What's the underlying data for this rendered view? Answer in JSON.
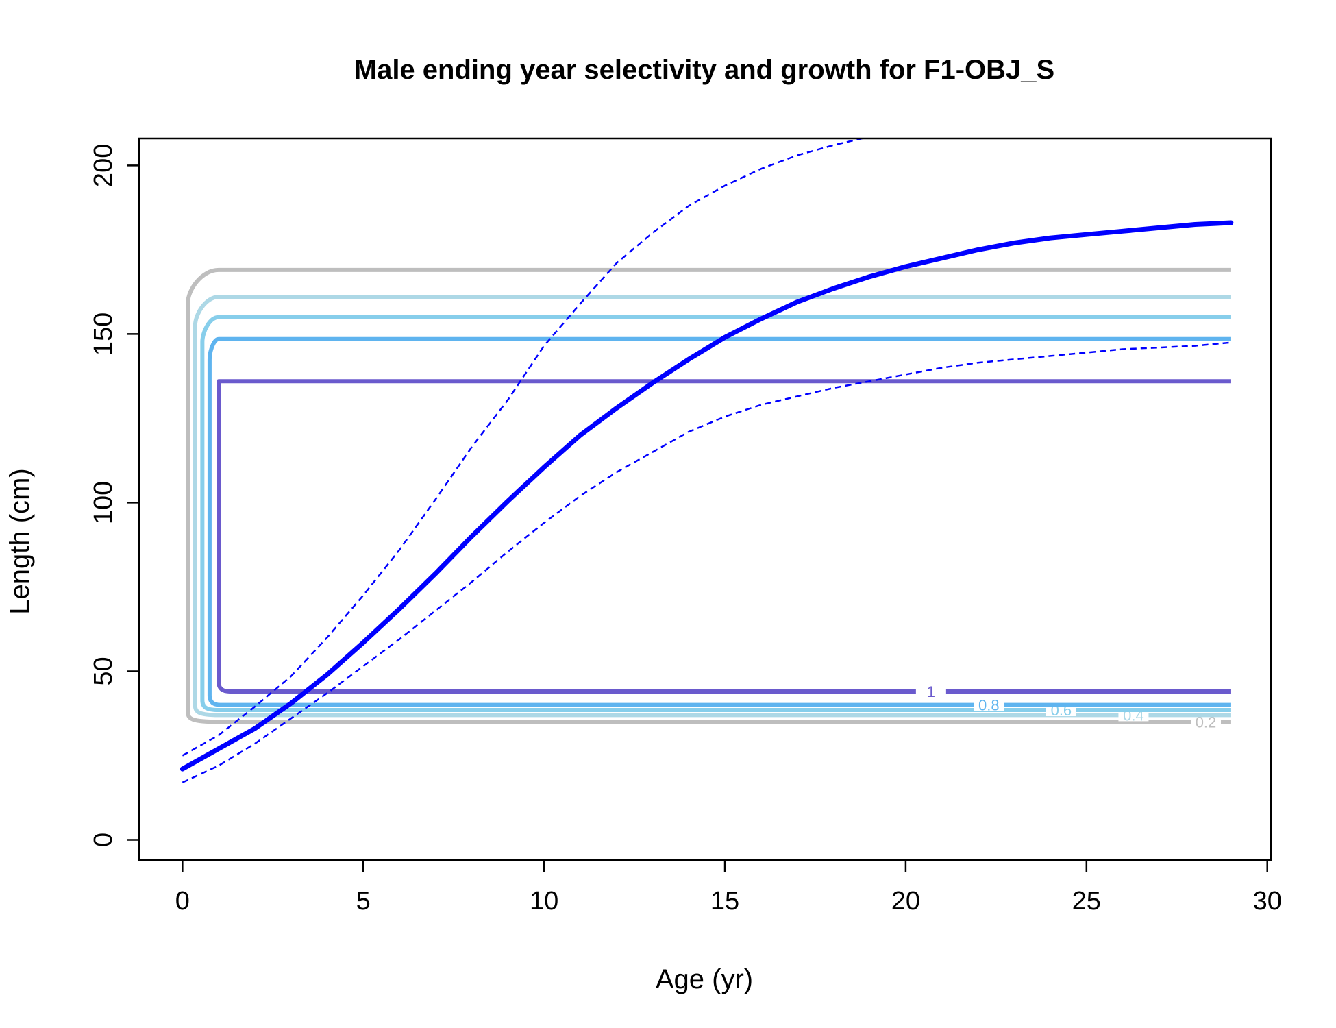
{
  "chart_data": {
    "type": "line",
    "title": "Male ending year selectivity and growth for F1-OBJ_S",
    "xlabel": "Age (yr)",
    "ylabel": "Length (cm)",
    "xlim": [
      -1.2,
      30.1
    ],
    "ylim": [
      -6,
      208
    ],
    "xticks": [
      0,
      5,
      10,
      15,
      20,
      25,
      30
    ],
    "yticks": [
      0,
      50,
      100,
      150,
      200
    ],
    "grid": false,
    "legend": "none",
    "growth": {
      "name": "",
      "color": "#0000ff",
      "x": [
        0,
        1,
        2,
        3,
        4,
        5,
        6,
        7,
        8,
        9,
        10,
        11,
        12,
        13,
        14,
        15,
        16,
        17,
        18,
        19,
        20,
        21,
        22,
        23,
        24,
        25,
        26,
        27,
        28,
        29
      ],
      "mean": [
        21,
        27,
        33,
        40.5,
        49,
        58.5,
        68.5,
        79,
        90,
        100.5,
        110.5,
        120,
        128,
        135.5,
        142.5,
        149,
        154.5,
        159.5,
        163.5,
        167,
        170,
        172.5,
        175,
        177,
        178.5,
        179.5,
        180.5,
        181.5,
        182.5,
        183
      ],
      "upper": [
        25,
        31,
        39.5,
        48.5,
        60,
        72.5,
        86,
        101,
        116.5,
        130.5,
        146.5,
        159,
        171,
        180,
        188,
        194,
        199,
        203,
        206,
        208.5,
        211,
        212.5,
        214,
        215,
        216,
        217,
        217.5,
        218,
        218.5,
        219
      ],
      "lower": [
        17,
        22,
        28.5,
        36,
        43.5,
        51.5,
        59.5,
        68,
        76.5,
        85.5,
        94,
        102,
        109,
        115,
        121,
        125.5,
        129,
        131.5,
        134,
        136,
        138,
        140,
        141.5,
        142.5,
        143.5,
        144.5,
        145.5,
        146,
        146.5,
        147.5
      ]
    },
    "contours": [
      {
        "level": "0.2",
        "color": "#bebebe",
        "x_start": 1,
        "x_end": 29,
        "y_low": 35,
        "y_high": 169,
        "x_left": 0.15,
        "label_x": 28.3
      },
      {
        "level": "0.4",
        "color": "#add8e6",
        "x_start": 1,
        "x_end": 29,
        "y_low": 37,
        "y_high": 161,
        "x_left": 0.35,
        "label_x": 26.3
      },
      {
        "level": "0.6",
        "color": "#87ceeb",
        "x_start": 1,
        "x_end": 29,
        "y_low": 38.5,
        "y_high": 155,
        "x_left": 0.55,
        "label_x": 24.3
      },
      {
        "level": "0.8",
        "color": "#5fb4ef",
        "x_start": 1,
        "x_end": 29,
        "y_low": 40,
        "y_high": 148.5,
        "x_left": 0.75,
        "label_x": 22.3
      },
      {
        "level": "1",
        "color": "#6a5acd",
        "x_start": 1,
        "x_end": 29,
        "y_low": 44,
        "y_high": 136,
        "x_left": 1.0,
        "label_x": 20.7
      }
    ]
  }
}
